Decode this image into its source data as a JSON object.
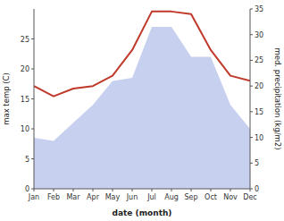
{
  "chart_data": {
    "type": "area",
    "categories": [
      "Jan",
      "Feb",
      "Mar",
      "Apr",
      "May",
      "Jun",
      "Jul",
      "Aug",
      "Sep",
      "Oct",
      "Nov",
      "Dec"
    ],
    "xlabel": "date (month)",
    "ylabel": "max temp (C)",
    "y2label": "med. precipitation (kg/m2)",
    "ylim": [
      0,
      30
    ],
    "yticks": [
      0,
      5,
      10,
      15,
      20,
      25
    ],
    "y2lim": [
      0,
      35
    ],
    "y2ticks": [
      0,
      5,
      10,
      15,
      20,
      25,
      30,
      35
    ],
    "grid": false,
    "series": [
      {
        "type": "area",
        "color": "#c8d0f0",
        "values": [
          8.5,
          8.0,
          11.0,
          14.0,
          18.0,
          18.5,
          27.0,
          27.0,
          22.0,
          22.0,
          14.0,
          10.0
        ]
      },
      {
        "type": "line",
        "axis": "y2",
        "color": "#c0392b",
        "values": [
          20.0,
          18.0,
          19.5,
          20.0,
          22.0,
          27.0,
          34.5,
          34.5,
          34.0,
          27.0,
          22.0,
          21.0
        ]
      }
    ]
  }
}
